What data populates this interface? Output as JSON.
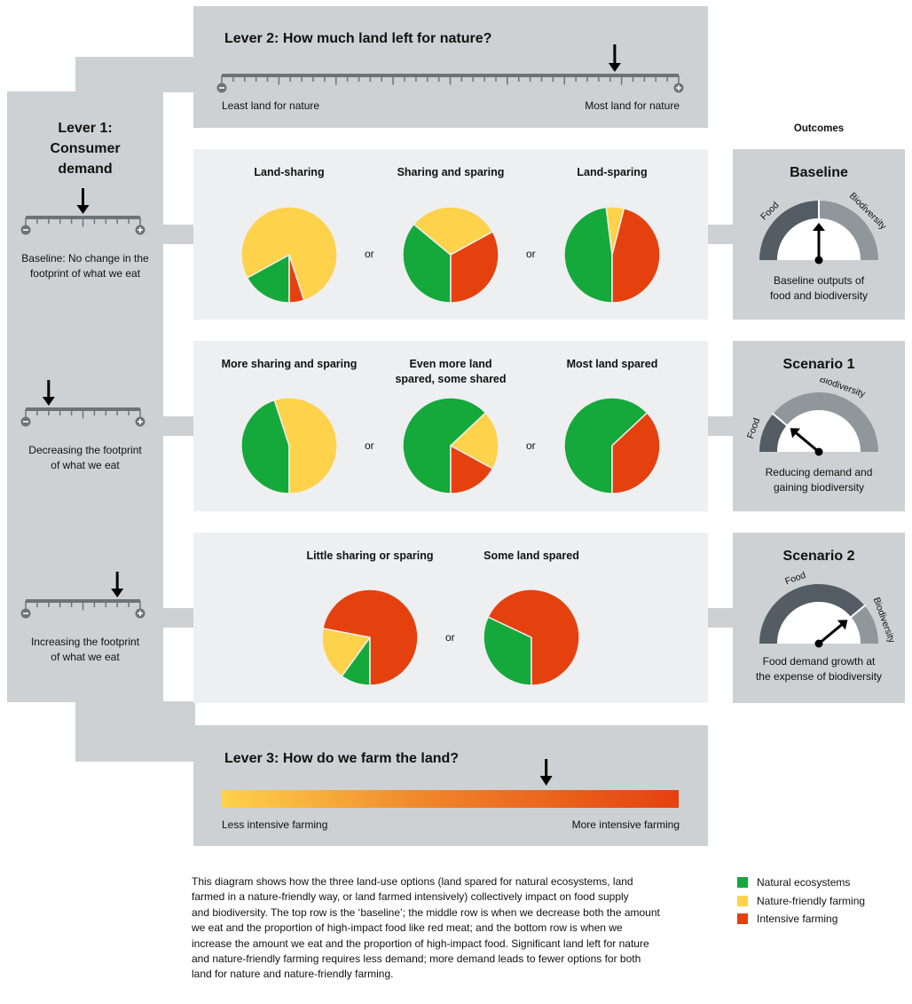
{
  "lever1": {
    "title_line1": "Lever 1:",
    "title_line2": "Consumer",
    "title_line3": "demand",
    "rows": [
      {
        "label_line1": "Baseline: No change in the",
        "label_line2": "footprint of what we eat",
        "level": 0.5
      },
      {
        "label_line1": "Decreasing the footprint",
        "label_line2": "of what we eat",
        "level": 0.2
      },
      {
        "label_line1": "Increasing the footprint",
        "label_line2": "of what we eat",
        "level": 0.8
      }
    ]
  },
  "lever2": {
    "title": "Lever 2: How much land left for nature?",
    "left_label": "Least land for nature",
    "right_label": "Most land for nature",
    "level": 0.86
  },
  "lever3": {
    "title": "Lever 3: How do we farm the land?",
    "left_label": "Less intensive farming",
    "right_label": "More intensive farming",
    "level": 0.71
  },
  "outcomes": {
    "heading": "Outcomes",
    "cards": [
      {
        "title": "Baseline",
        "food_label": "Food",
        "bio_label": "Biodiversity",
        "food_share": 0.5,
        "desc_line1": "Baseline outputs of",
        "desc_line2": "food and biodiversity"
      },
      {
        "title": "Scenario 1",
        "food_label": "Food",
        "bio_label": "Biodiversity",
        "food_share": 0.22,
        "desc_line1": "Reducing demand and",
        "desc_line2": "gaining biodiversity"
      },
      {
        "title": "Scenario 2",
        "food_label": "Food",
        "bio_label": "Biodiversity",
        "food_share": 0.78,
        "desc_line1": "Food demand growth at",
        "desc_line2": "the expense of biodiversity"
      }
    ]
  },
  "or_label": "or",
  "pie_rows": [
    [
      {
        "title_line1": "Land-sharing",
        "title_line2": "",
        "natural": 0.17,
        "friendly": 0.78,
        "intensive": 0.05
      },
      {
        "title_line1": "Sharing and sparing",
        "title_line2": "",
        "natural": 0.36,
        "friendly": 0.31,
        "intensive": 0.33
      },
      {
        "title_line1": "Land-sparing",
        "title_line2": "",
        "natural": 0.48,
        "friendly": 0.06,
        "intensive": 0.46
      }
    ],
    [
      {
        "title_line1": "More sharing and sparing",
        "title_line2": "",
        "natural": 0.45,
        "friendly": 0.55,
        "intensive": 0
      },
      {
        "title_line1": "Even more land",
        "title_line2": "spared, some shared",
        "natural": 0.63,
        "friendly": 0.2,
        "intensive": 0.17
      },
      {
        "title_line1": "Most land spared",
        "title_line2": "",
        "natural": 0.63,
        "friendly": 0,
        "intensive": 0.37
      }
    ],
    [
      {
        "title_line1": "Little sharing or sparing",
        "title_line2": "",
        "natural": 0.1,
        "friendly": 0.18,
        "intensive": 0.72
      },
      {
        "title_line1": "Some land spared",
        "title_line2": "",
        "natural": 0.32,
        "friendly": 0,
        "intensive": 0.68
      }
    ]
  ],
  "legend": [
    {
      "label": "Natural ecosystems",
      "color": "#15a83b"
    },
    {
      "label": "Nature-friendly farming",
      "color": "#fed24a"
    },
    {
      "label": "Intensive farming",
      "color": "#e5410f"
    }
  ],
  "colors": {
    "natural": "#15a83b",
    "friendly": "#fed24a",
    "intensive": "#e5410f",
    "gauge_food": "#535d63",
    "gauge_bio": "#8f979b",
    "box": "#cdd1d3",
    "panel": "#eeeff0",
    "ruler": "#6d7478"
  },
  "description": [
    "This diagram shows how the three land-use options (land spared for natural ecosystems, land",
    "farmed in a nature-friendly way, or land farmed intensively) collectively impact on food supply",
    "and biodiversity. The top row is the ‘baseline’; the middle row is when we decrease both the amount",
    "we eat and the proportion of high-impact food like red meat; and the bottom row is when we",
    "increase the amount we eat and the proportion of high-impact food. Significant land left for nature",
    "and nature-friendly farming requires less demand; more demand leads to fewer options for both",
    "land for nature and nature-friendly farming."
  ]
}
